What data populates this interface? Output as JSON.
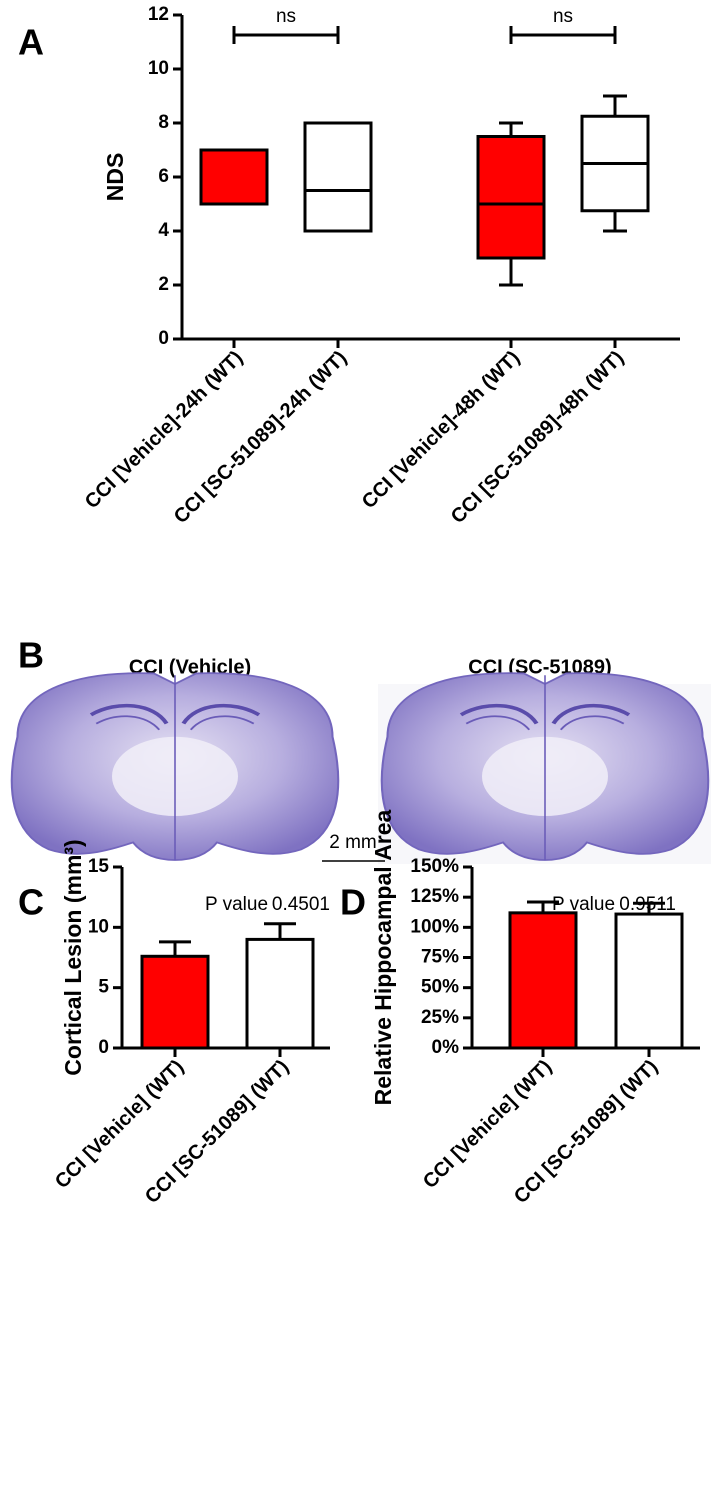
{
  "chart_data": [
    {
      "type": "box",
      "panel_label": "A",
      "y_label": "NDS",
      "categories": [
        "CCI [Vehicle]-24h (WT)",
        "CCI [SC-51089]-24h (WT)",
        "CCI [Vehicle]-48h (WT)",
        "CCI [SC-51089]-48h (WT)"
      ],
      "min": [
        5,
        4,
        2,
        4
      ],
      "q1": [
        5,
        4,
        3,
        4.75
      ],
      "median": [
        5,
        5.5,
        5,
        6.5
      ],
      "q3": [
        7,
        8,
        7.5,
        8.25
      ],
      "max": [
        7,
        8,
        8,
        9
      ],
      "colors": [
        "#ff0000",
        "#ffffff",
        "#ff0000",
        "#ffffff"
      ],
      "annotations": [
        "ns",
        "ns"
      ],
      "ylim": [
        0,
        12
      ],
      "yticks": [
        0,
        2,
        4,
        6,
        8,
        10,
        12
      ]
    },
    {
      "type": "bar",
      "panel_label": "C",
      "y_label": "Cortical Lesion (mm³)",
      "categories": [
        "CCI [Vehicle] (WT)",
        "CCI [SC-51089] (WT)"
      ],
      "values": [
        7.6,
        9.0
      ],
      "errors": [
        1.2,
        1.3
      ],
      "colors": [
        "#ff0000",
        "#ffffff"
      ],
      "annotations": [
        "P value",
        "0.4501"
      ],
      "ylim": [
        0,
        15
      ],
      "yticks": [
        0,
        5,
        10,
        15
      ]
    },
    {
      "type": "bar",
      "panel_label": "D",
      "y_label": "Relative Hippocampal Area",
      "categories": [
        "CCI [Vehicle] (WT)",
        "CCI [SC-51089] (WT)"
      ],
      "values": [
        112,
        111
      ],
      "errors": [
        9,
        9
      ],
      "colors": [
        "#ff0000",
        "#ffffff"
      ],
      "annotations": [
        "P value",
        "0.9511"
      ],
      "ylim": [
        0,
        150
      ],
      "yticks": [
        {
          "value": 0,
          "label": "0%"
        },
        {
          "value": 25,
          "label": "25%"
        },
        {
          "value": 50,
          "label": "50%"
        },
        {
          "value": 75,
          "label": "75%"
        },
        {
          "value": 100,
          "label": "100%"
        },
        {
          "value": 125,
          "label": "125%"
        },
        {
          "value": 150,
          "label": "150%"
        }
      ]
    }
  ],
  "panel_b": {
    "panel_label": "B",
    "images": [
      {
        "title": "CCI (Vehicle)"
      },
      {
        "title": "CCI (SC-51089)"
      }
    ],
    "scale_bar": "2 mm"
  }
}
